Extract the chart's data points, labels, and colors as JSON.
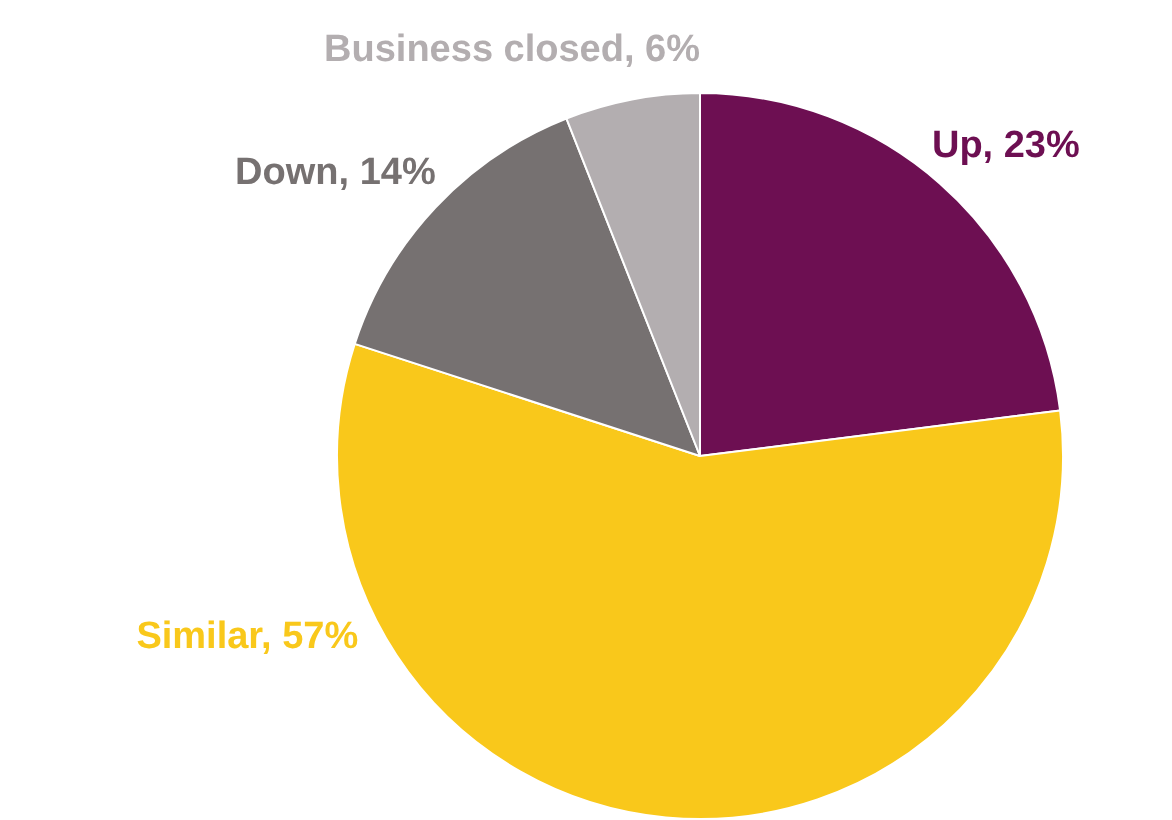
{
  "chart_data": {
    "type": "pie",
    "categories": [
      "Up",
      "Similar",
      "Down",
      "Business closed"
    ],
    "values": [
      23,
      57,
      14,
      6
    ],
    "value_labels": [
      "23%",
      "57%",
      "14%",
      "6%"
    ],
    "colors": [
      "#6d0f52",
      "#f9c81b",
      "#767171",
      "#b3aeb0"
    ],
    "legend": false
  }
}
